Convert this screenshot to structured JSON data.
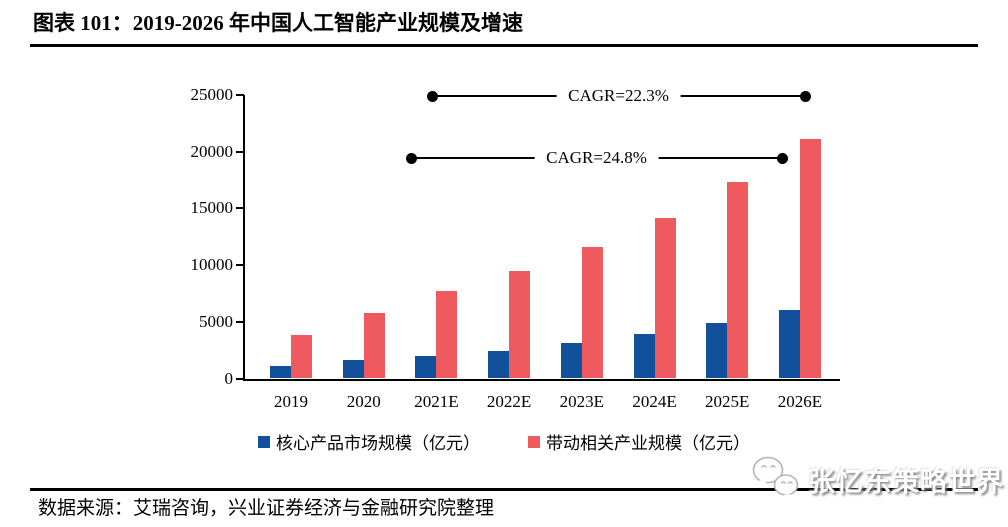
{
  "figure": {
    "title": "图表 101：2019-2026 年中国人工智能产业规模及增速",
    "source": "数据来源：艾瑞咨询，兴业证券经济与金融研究院整理"
  },
  "watermark": {
    "icon": "wechat-icon",
    "text": "张忆东策略世界"
  },
  "chart_data": {
    "type": "bar",
    "title": "2019-2026 年中国人工智能产业规模及增速",
    "categories": [
      "2019",
      "2020",
      "2021E",
      "2022E",
      "2023E",
      "2024E",
      "2025E",
      "2026E"
    ],
    "series": [
      {
        "name": "核心产品市场规模（亿元）",
        "color": "#11519C",
        "values": [
          1100,
          1600,
          2000,
          2450,
          3100,
          3900,
          4900,
          6050
        ]
      },
      {
        "name": "带动相关产业规模（亿元）",
        "color": "#EF5A5E",
        "values": [
          3850,
          5750,
          7700,
          9450,
          11600,
          14150,
          17350,
          21100
        ]
      }
    ],
    "xlabel": "",
    "ylabel": "",
    "ylim": [
      0,
      25000
    ],
    "yticks": [
      0,
      5000,
      10000,
      15000,
      20000,
      25000
    ],
    "grid": false,
    "legend_position": "bottom",
    "annotations": [
      {
        "label": "CAGR=22.3%",
        "applies_to": "带动相关产业规模（亿元）",
        "from": "2021E",
        "to": "2026E"
      },
      {
        "label": "CAGR=24.8%",
        "applies_to": "核心产品市场规模（亿元）",
        "from": "2021E",
        "to": "2026E"
      }
    ]
  }
}
